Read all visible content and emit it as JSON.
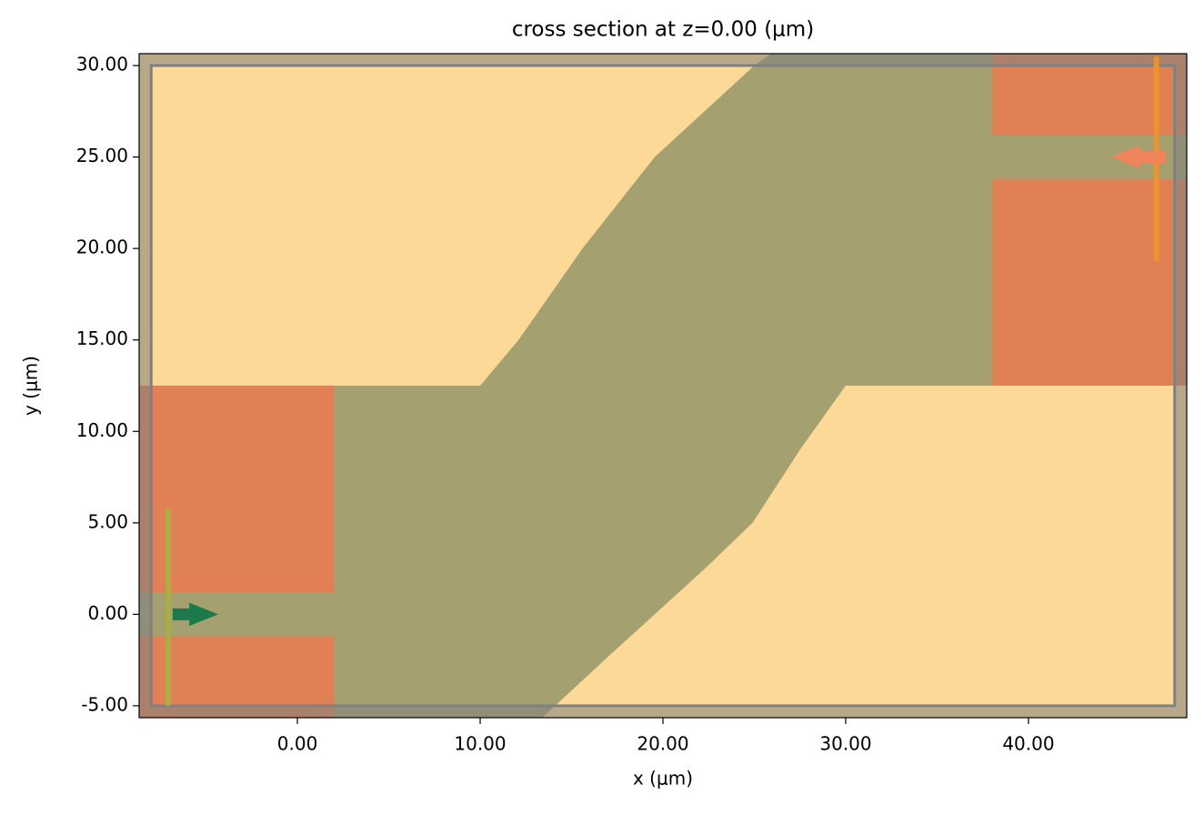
{
  "chart_data": {
    "type": "structure",
    "title": "cross section at z=0.00 (μm)",
    "xlabel": "x (μm)",
    "ylabel": "y (μm)",
    "xlim": [
      -8.66,
      48.66
    ],
    "ylim": [
      -5.65,
      30.65
    ],
    "xticks": [
      {
        "value": 0,
        "label": "0.00"
      },
      {
        "value": 10,
        "label": "10.00"
      },
      {
        "value": 20,
        "label": "20.00"
      },
      {
        "value": 30,
        "label": "30.00"
      },
      {
        "value": 40,
        "label": "40.00"
      }
    ],
    "yticks": [
      {
        "value": -5,
        "label": "-5.00"
      },
      {
        "value": 0,
        "label": "0.00"
      },
      {
        "value": 5,
        "label": "5.00"
      },
      {
        "value": 10,
        "label": "10.00"
      },
      {
        "value": 15,
        "label": "15.00"
      },
      {
        "value": 20,
        "label": "20.00"
      },
      {
        "value": 25,
        "label": "25.00"
      },
      {
        "value": 30,
        "label": "30.00"
      }
    ],
    "background": "#fdd998",
    "regions": [
      {
        "color": "#a4a070",
        "points": [
          [
            10,
            12.5
          ],
          [
            12.1,
            15
          ],
          [
            15.6,
            20
          ],
          [
            19.55,
            25
          ],
          [
            25,
            30
          ],
          [
            25.9,
            30.65
          ],
          [
            48.66,
            30.65
          ],
          [
            48.66,
            12.5
          ]
        ]
      },
      {
        "color": "#a4a070",
        "points": [
          [
            -8.66,
            12.5
          ],
          [
            30,
            12.5
          ],
          [
            27.5,
            9
          ],
          [
            24.9,
            5
          ],
          [
            22.3,
            2.5
          ],
          [
            19.55,
            0
          ],
          [
            16.8,
            -2.5
          ],
          [
            14.1,
            -5
          ],
          [
            13.4,
            -5.65
          ],
          [
            -8.66,
            -5.65
          ]
        ]
      },
      {
        "color": "#e18055",
        "points": [
          [
            -8.66,
            12.5
          ],
          [
            2,
            12.5
          ],
          [
            2,
            1.2
          ],
          [
            -8.66,
            1.2
          ]
        ]
      },
      {
        "color": "#e18055",
        "points": [
          [
            -8.66,
            -1.2
          ],
          [
            2,
            -1.2
          ],
          [
            2,
            -5.65
          ],
          [
            -8.66,
            -5.65
          ]
        ]
      },
      {
        "color": "#e18055",
        "points": [
          [
            38,
            30.65
          ],
          [
            48.66,
            30.65
          ],
          [
            48.66,
            26.2
          ],
          [
            38,
            26.2
          ]
        ]
      },
      {
        "color": "#e18055",
        "points": [
          [
            38,
            23.8
          ],
          [
            48.66,
            23.8
          ],
          [
            48.66,
            12.5
          ],
          [
            38,
            12.5
          ]
        ]
      }
    ],
    "domain": {
      "x": [
        -8,
        48
      ],
      "y": [
        -5,
        30
      ],
      "color": "#808080"
    },
    "lines": [
      {
        "color": "#a8b040",
        "x": -7.06,
        "y": [
          -5,
          5.76
        ]
      },
      {
        "color": "#f0922a",
        "x": 47,
        "y": [
          19.3,
          30.5
        ]
      }
    ],
    "arrows": [
      {
        "color": "#1a7a4a",
        "x": [
          -6.8,
          -4.4
        ],
        "y": 0
      },
      {
        "color": "#f0845a",
        "x": [
          47.5,
          44.6
        ],
        "y": 25
      }
    ]
  }
}
